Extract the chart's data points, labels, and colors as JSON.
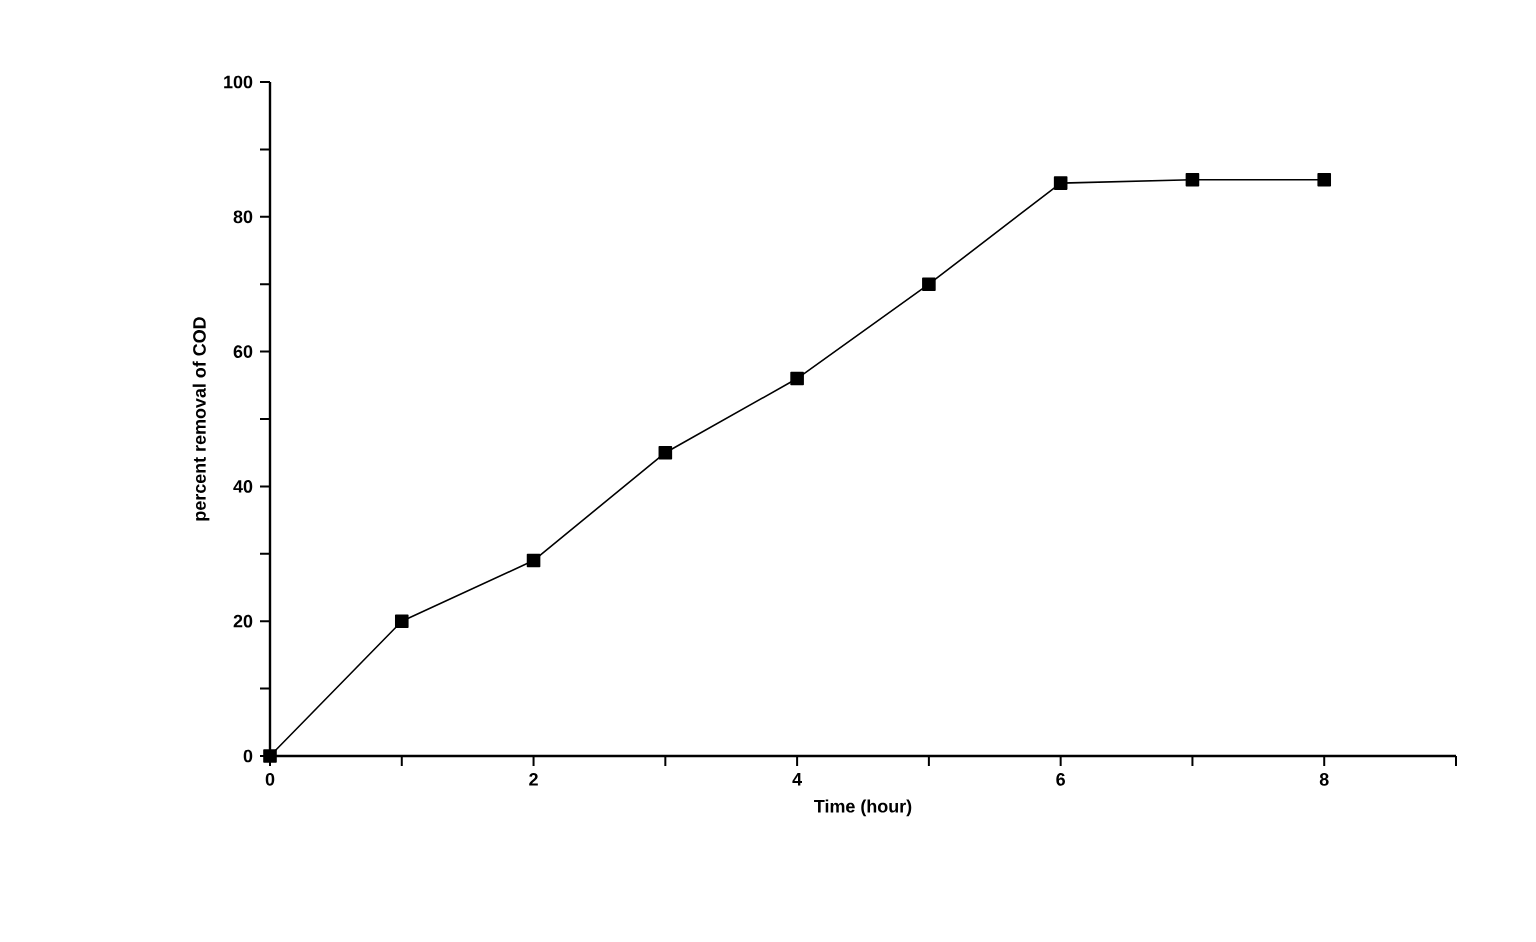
{
  "chart_data": {
    "type": "line",
    "xlabel": "Time (hour)",
    "ylabel": "percent removal of COD",
    "x": [
      0,
      1,
      2,
      3,
      4,
      5,
      6,
      7,
      8
    ],
    "values": [
      0,
      20,
      29,
      45,
      56,
      70,
      85,
      85.5,
      85.5
    ],
    "color": "#000000",
    "marker": "square",
    "line_style": "solid",
    "grid": false,
    "xlim": [
      0,
      9
    ],
    "xticks": [
      0,
      {
        "value": 1,
        "label": null
      },
      2,
      {
        "value": 3,
        "label": null
      },
      4,
      {
        "value": 5,
        "label": null
      },
      6,
      {
        "value": 7,
        "label": null
      },
      8,
      {
        "value": 9,
        "label": null
      }
    ],
    "ylim": [
      0,
      100
    ],
    "yticks": [
      0,
      {
        "value": 10,
        "label": null
      },
      20,
      {
        "value": 30,
        "label": null
      },
      40,
      {
        "value": 50,
        "label": null
      },
      60,
      {
        "value": 70,
        "label": null
      },
      80,
      {
        "value": 90,
        "label": null
      },
      100
    ]
  }
}
